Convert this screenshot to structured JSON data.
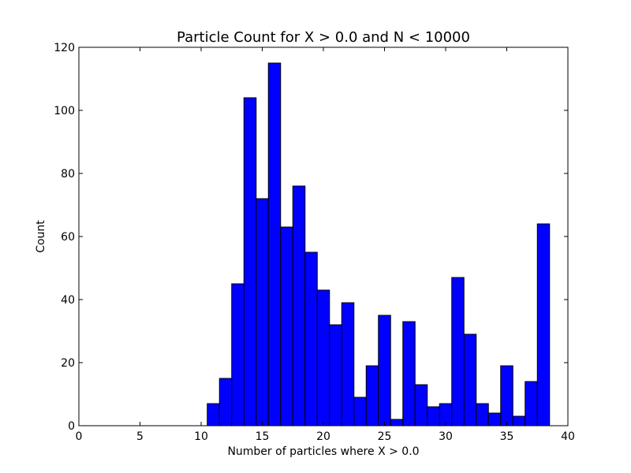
{
  "chart_data": {
    "type": "bar",
    "title": "Particle Count for X > 0.0 and N < 10000",
    "xlabel": "Number of particles where X > 0.0",
    "ylabel": "Count",
    "xlim": [
      0,
      40
    ],
    "ylim": [
      0,
      120
    ],
    "x_ticks": [
      "0",
      "5",
      "10",
      "15",
      "20",
      "25",
      "30",
      "35",
      "40"
    ],
    "y_ticks": [
      "0",
      "20",
      "40",
      "60",
      "80",
      "100",
      "120"
    ],
    "grid": false,
    "bar_color": "#0000ff",
    "bins": [
      {
        "start": 10.5,
        "end": 11.5,
        "count": 7
      },
      {
        "start": 11.5,
        "end": 12.5,
        "count": 15
      },
      {
        "start": 12.5,
        "end": 13.5,
        "count": 45
      },
      {
        "start": 13.5,
        "end": 14.5,
        "count": 104
      },
      {
        "start": 14.5,
        "end": 15.5,
        "count": 72
      },
      {
        "start": 15.5,
        "end": 16.5,
        "count": 115
      },
      {
        "start": 16.5,
        "end": 17.5,
        "count": 63
      },
      {
        "start": 17.5,
        "end": 18.5,
        "count": 76
      },
      {
        "start": 18.5,
        "end": 19.5,
        "count": 55
      },
      {
        "start": 19.5,
        "end": 20.5,
        "count": 43
      },
      {
        "start": 20.5,
        "end": 21.5,
        "count": 32
      },
      {
        "start": 21.5,
        "end": 22.5,
        "count": 39
      },
      {
        "start": 22.5,
        "end": 23.5,
        "count": 9
      },
      {
        "start": 23.5,
        "end": 24.5,
        "count": 19
      },
      {
        "start": 24.5,
        "end": 25.5,
        "count": 35
      },
      {
        "start": 25.5,
        "end": 26.5,
        "count": 2
      },
      {
        "start": 26.5,
        "end": 27.5,
        "count": 33
      },
      {
        "start": 27.5,
        "end": 28.5,
        "count": 13
      },
      {
        "start": 28.5,
        "end": 29.5,
        "count": 6
      },
      {
        "start": 29.5,
        "end": 30.5,
        "count": 7
      },
      {
        "start": 30.5,
        "end": 31.5,
        "count": 47
      },
      {
        "start": 31.5,
        "end": 32.5,
        "count": 29
      },
      {
        "start": 32.5,
        "end": 33.5,
        "count": 7
      },
      {
        "start": 33.5,
        "end": 34.5,
        "count": 4
      },
      {
        "start": 34.5,
        "end": 35.5,
        "count": 19
      },
      {
        "start": 35.5,
        "end": 36.5,
        "count": 3
      },
      {
        "start": 36.5,
        "end": 37.5,
        "count": 14
      },
      {
        "start": 37.5,
        "end": 38.5,
        "count": 64
      }
    ]
  }
}
